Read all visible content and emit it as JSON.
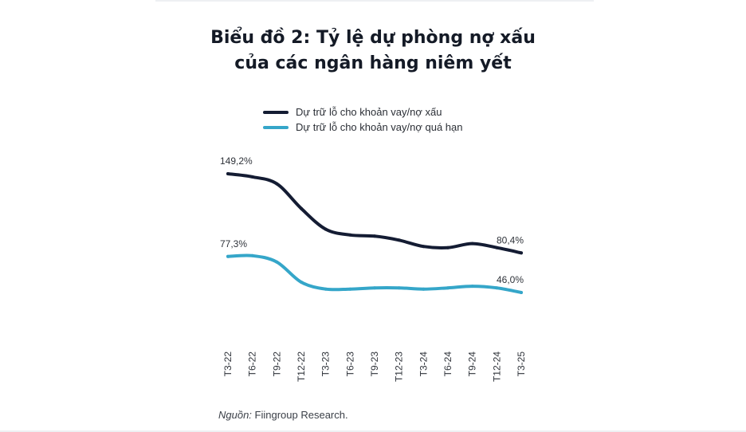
{
  "chart_data": {
    "type": "line",
    "title_line1": "Biểu đồ 2: Tỷ lệ dự phòng nợ xấu",
    "title_line2": "của các ngân hàng niêm yết",
    "xlabel": "",
    "ylabel": "",
    "unit": "%",
    "ylim": [
      20,
      160
    ],
    "grid": false,
    "legend_position": "top-left",
    "x": [
      "T3-22",
      "T6-22",
      "T9-22",
      "T12-22",
      "T3-23",
      "T6-23",
      "T9-23",
      "T12-23",
      "T3-24",
      "T6-24",
      "T9-24",
      "T12-24",
      "T3-25"
    ],
    "series": [
      {
        "name": "Dự trữ lỗ cho khoản vay/nợ xấu",
        "color": "#141c33",
        "values": [
          149.2,
          146.5,
          140.5,
          119.0,
          101.0,
          96.0,
          95.0,
          91.5,
          86.0,
          85.0,
          88.5,
          85.0,
          80.4
        ],
        "labels": [
          {
            "index": 0,
            "text": "149,2%"
          },
          {
            "index": 12,
            "text": "80,4%"
          }
        ]
      },
      {
        "name": "Dự trữ lỗ cho khoản vay/nợ quá hạn",
        "color": "#35a6c9",
        "values": [
          77.3,
          78.0,
          72.5,
          55.0,
          49.0,
          49.0,
          50.0,
          50.0,
          49.0,
          50.0,
          51.5,
          50.0,
          46.0
        ],
        "labels": [
          {
            "index": 0,
            "text": "77,3%"
          },
          {
            "index": 12,
            "text": "46,0%"
          }
        ]
      }
    ]
  },
  "source": {
    "lead": "Nguồn:",
    "text": " Fiingroup Research."
  }
}
